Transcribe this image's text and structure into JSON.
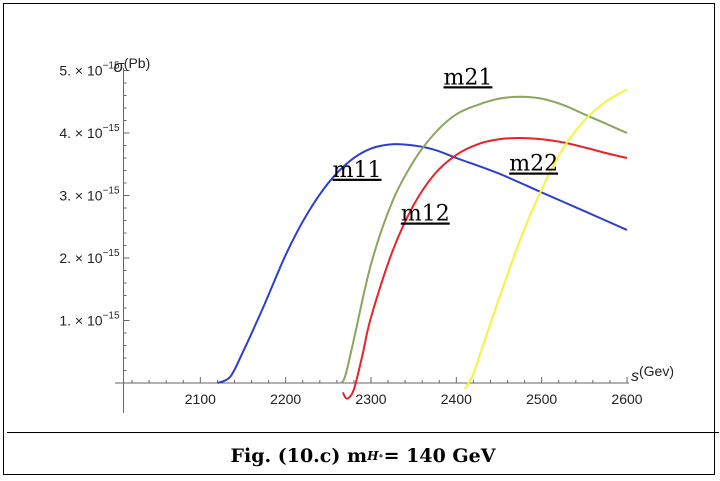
{
  "chart_data": {
    "type": "line",
    "xlabel": "s(Gev)",
    "ylabel_prefix": "σ",
    "ylabel_suffix": "(Pb)",
    "xlim": [
      2000,
      2600
    ],
    "ylim": [
      0,
      5.2e-15
    ],
    "x_ticks": [
      2100,
      2200,
      2300,
      2400,
      2500,
      2600
    ],
    "y_ticks": [
      {
        "value": 1e-15,
        "mantissa": "1.",
        "times": "×",
        "base": "10",
        "exp": "−15"
      },
      {
        "value": 2e-15,
        "mantissa": "2.",
        "times": "×",
        "base": "10",
        "exp": "−15"
      },
      {
        "value": 3e-15,
        "mantissa": "3.",
        "times": "×",
        "base": "10",
        "exp": "−15"
      },
      {
        "value": 4e-15,
        "mantissa": "4.",
        "times": "×",
        "base": "10",
        "exp": "−15"
      },
      {
        "value": 5e-15,
        "mantissa": "5.",
        "times": "×",
        "base": "10",
        "exp": "−15"
      }
    ],
    "series": [
      {
        "name": "m11",
        "color": "#2b3ed0",
        "x": [
          2120,
          2135,
          2150,
          2175,
          2200,
          2225,
          2250,
          2275,
          2300,
          2325,
          2350,
          2375,
          2400,
          2450,
          2500,
          2550,
          2600
        ],
        "y": [
          0,
          1e-16,
          5e-16,
          1.25e-15,
          2.05e-15,
          2.7e-15,
          3.2e-15,
          3.55e-15,
          3.75e-15,
          3.82e-15,
          3.8e-15,
          3.73e-15,
          3.6e-15,
          3.35e-15,
          3.05e-15,
          2.75e-15,
          2.45e-15
        ]
      },
      {
        "name": "m21",
        "color": "#8aa55c",
        "x": [
          2265,
          2270,
          2280,
          2300,
          2325,
          2350,
          2375,
          2400,
          2425,
          2450,
          2475,
          2500,
          2525,
          2550,
          2575,
          2600
        ],
        "y": [
          0,
          1.2e-16,
          7e-16,
          1.9e-15,
          2.9e-15,
          3.55e-15,
          4e-15,
          4.3e-15,
          4.45e-15,
          4.55e-15,
          4.58e-15,
          4.55e-15,
          4.45e-15,
          4.3e-15,
          4.15e-15,
          4e-15
        ]
      },
      {
        "name": "m12",
        "color": "#e8232a",
        "x": [
          2267,
          2272,
          2280,
          2290,
          2300,
          2325,
          2350,
          2375,
          2400,
          2425,
          2450,
          2475,
          2500,
          2525,
          2550,
          2575,
          2600
        ],
        "y": [
          -1.5e-16,
          -2.5e-16,
          -1e-16,
          4.5e-16,
          1.05e-15,
          2.1e-15,
          2.85e-15,
          3.35e-15,
          3.65e-15,
          3.82e-15,
          3.9e-15,
          3.92e-15,
          3.9e-15,
          3.85e-15,
          3.77e-15,
          3.68e-15,
          3.6e-15
        ]
      },
      {
        "name": "m22",
        "color": "#f4f43c",
        "x": [
          2410,
          2420,
          2430,
          2450,
          2475,
          2500,
          2525,
          2550,
          2575,
          2600
        ],
        "y": [
          -1e-16,
          1.5e-16,
          5.5e-16,
          1.35e-15,
          2.3e-15,
          3.1e-15,
          3.75e-15,
          4.2e-15,
          4.5e-15,
          4.7e-15
        ]
      }
    ]
  },
  "labels": [
    {
      "text": "m11",
      "x": 2255,
      "y": 3.3e-15
    },
    {
      "text": "m21",
      "x": 2385,
      "y": 4.78e-15
    },
    {
      "text": "m12",
      "x": 2335,
      "y": 2.6e-15
    },
    {
      "text": "m22",
      "x": 2462,
      "y": 3.4e-15
    }
  ],
  "caption": {
    "prefix": "Fig. (10.c) m",
    "sub": "H",
    "sup": "∘",
    "suffix": " = 140 GeV"
  }
}
